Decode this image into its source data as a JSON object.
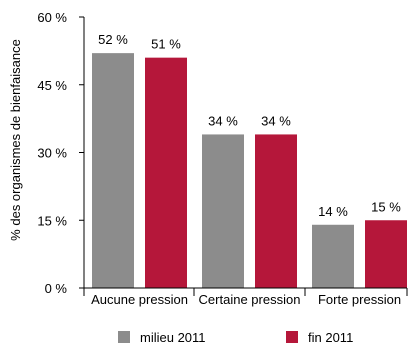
{
  "chart_data": {
    "type": "bar",
    "categories": [
      "Aucune pression",
      "Certaine pression",
      "Forte pression"
    ],
    "series": [
      {
        "name": "milieu 2011",
        "values": [
          52,
          34,
          14
        ],
        "labels": [
          "52 %",
          "34 %",
          "14 %"
        ],
        "color": "#8c8c8c"
      },
      {
        "name": "fin 2011",
        "values": [
          51,
          34,
          15
        ],
        "labels": [
          "51 %",
          "34 %",
          "15 %"
        ],
        "color": "#b5173a"
      }
    ],
    "ylabel": "% des organismes de bienfaisance",
    "xlabel": "",
    "ylim": [
      0,
      60
    ],
    "yticks": [
      0,
      15,
      30,
      45,
      60
    ],
    "ytick_labels": [
      "0 %",
      "15 %",
      "30 %",
      "45 %",
      "60 %"
    ],
    "legend_position": "bottom",
    "grid": false
  }
}
